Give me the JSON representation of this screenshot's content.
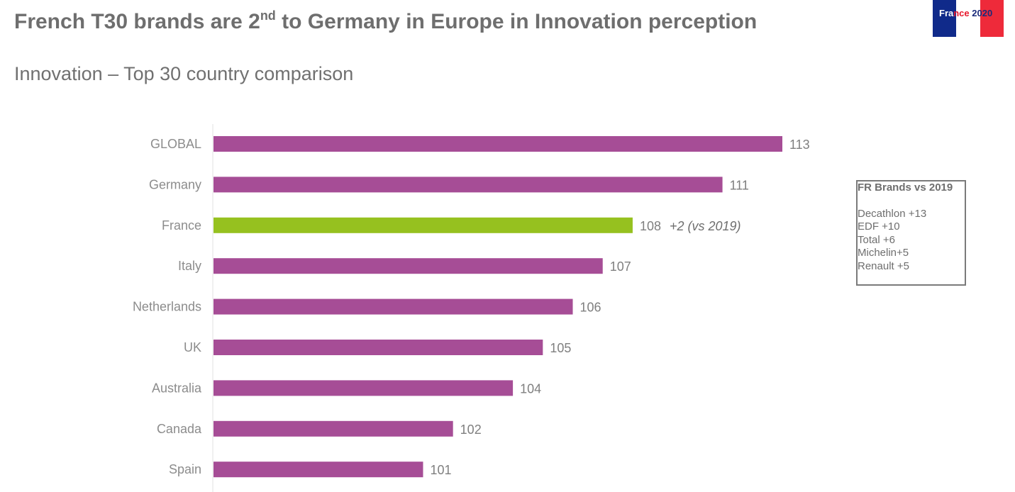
{
  "header": {
    "title_prefix": "French T30 brands are 2",
    "title_sup": "nd",
    "title_suffix": " to Germany in Europe in Innovation perception",
    "subtitle": "Innovation – Top 30 country comparison"
  },
  "badge": {
    "part1": "Fra",
    "part2": "nce",
    "part3": " 2020",
    "colors": {
      "blue": "#102a8a",
      "white": "#ffffff",
      "red": "#ee2a3a"
    }
  },
  "callout": {
    "heading": "FR Brands vs 2019",
    "items": [
      "Decathlon +13",
      "EDF +10",
      "Total +6",
      "Michelin+5",
      "Renault +5"
    ]
  },
  "chart_data": {
    "type": "bar",
    "orientation": "horizontal",
    "title": "Innovation – Top 30 country comparison",
    "xlabel": "",
    "ylabel": "",
    "categories": [
      "GLOBAL",
      "Germany",
      "France",
      "Italy",
      "Netherlands",
      "UK",
      "Australia",
      "Canada",
      "Spain"
    ],
    "values": [
      113,
      111,
      108,
      107,
      106,
      105,
      104,
      102,
      101
    ],
    "xlim": [
      94,
      113
    ],
    "grid": false,
    "highlight": {
      "category": "France",
      "annotation": "+2 (vs 2019)",
      "color": "#96c11f"
    },
    "colors": {
      "bar": "#a64d96",
      "highlight": "#96c11f",
      "label": "#7f7f7f"
    }
  }
}
